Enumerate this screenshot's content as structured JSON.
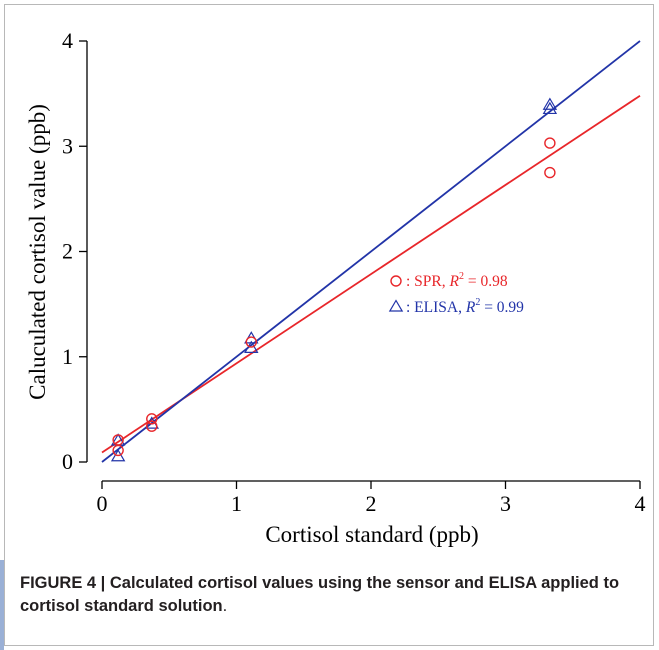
{
  "chart_data": {
    "type": "scatter",
    "xlabel": "Cortisol standard (ppb)",
    "ylabel": "Caluculated cortisol value (ppb)",
    "xlim": [
      0,
      4
    ],
    "ylim": [
      0,
      4
    ],
    "x_ticks": [
      "0",
      "1",
      "2",
      "3",
      "4"
    ],
    "y_ticks": [
      "0",
      "1",
      "2",
      "3",
      "4"
    ],
    "grid": false,
    "legend_position": "middle-right",
    "series": [
      {
        "name": "SPR",
        "legend_label": ": SPR, ",
        "r2_symbol": "R",
        "r2_exp": "2",
        "r2_value": " = 0.98",
        "marker": "circle",
        "color": "#e8262a",
        "points": [
          {
            "x": 0.12,
            "y": 0.21
          },
          {
            "x": 0.12,
            "y": 0.11
          },
          {
            "x": 0.37,
            "y": 0.41
          },
          {
            "x": 0.37,
            "y": 0.34
          },
          {
            "x": 1.11,
            "y": 1.14
          },
          {
            "x": 3.33,
            "y": 3.03
          },
          {
            "x": 3.33,
            "y": 2.75
          }
        ],
        "fit_line": {
          "x": [
            0,
            4
          ],
          "y": [
            0.09,
            3.48
          ]
        }
      },
      {
        "name": "ELISA",
        "legend_label": ": ELISA, ",
        "r2_symbol": "R",
        "r2_exp": "2",
        "r2_value": " = 0.99",
        "marker": "triangle",
        "color": "#2234a8",
        "points": [
          {
            "x": 0.12,
            "y": 0.2
          },
          {
            "x": 0.12,
            "y": 0.05
          },
          {
            "x": 0.37,
            "y": 0.36
          },
          {
            "x": 1.11,
            "y": 1.17
          },
          {
            "x": 1.11,
            "y": 1.08
          },
          {
            "x": 3.33,
            "y": 3.39
          },
          {
            "x": 3.33,
            "y": 3.35
          }
        ],
        "fit_line": {
          "x": [
            0,
            4
          ],
          "y": [
            0.0,
            4.0
          ]
        }
      }
    ]
  },
  "caption": {
    "figure_label": "FIGURE 4 | Calculated cortisol values using the sensor and ELISA applied to cortisol standard solution",
    "end_punct": "."
  },
  "colors": {
    "axis": "#000000",
    "caption_rule": "#9ab0d6"
  }
}
